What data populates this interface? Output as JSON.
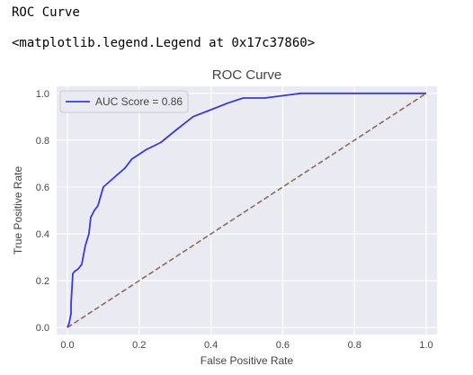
{
  "cell": {
    "print_output": "ROC Curve",
    "repr_output": "<matplotlib.legend.Legend at 0x17c37860>"
  },
  "colors": {
    "plot_background": "#eaeaf2",
    "grid": "#ffffff",
    "roc_line": "#3a3ad8",
    "diagonal_line": "#8c6a5c",
    "legend_border": "#cccccc",
    "text": "#444444"
  },
  "chart_data": {
    "type": "line",
    "title": "ROC Curve",
    "xlabel": "False Positive Rate",
    "ylabel": "True Positive Rate",
    "xlim": [
      -0.03,
      1.03
    ],
    "ylim": [
      -0.03,
      1.03
    ],
    "xticks": [
      0.0,
      0.2,
      0.4,
      0.6,
      0.8,
      1.0
    ],
    "yticks": [
      0.0,
      0.2,
      0.4,
      0.6,
      0.8,
      1.0
    ],
    "xtick_labels": [
      "0.0",
      "0.2",
      "0.4",
      "0.6",
      "0.8",
      "1.0"
    ],
    "ytick_labels": [
      "0.0",
      "0.2",
      "0.4",
      "0.6",
      "0.8",
      "1.0"
    ],
    "grid": true,
    "legend_position": "top-left",
    "series": [
      {
        "name": "AUC Score = 0.86",
        "style": "solid",
        "color": "#3a3ad8",
        "x": [
          0.0,
          0.005,
          0.01,
          0.01,
          0.015,
          0.02,
          0.03,
          0.04,
          0.05,
          0.06,
          0.065,
          0.075,
          0.085,
          0.1,
          0.13,
          0.16,
          0.18,
          0.22,
          0.26,
          0.3,
          0.35,
          0.4,
          0.45,
          0.49,
          0.55,
          0.6,
          0.65,
          0.7,
          0.8,
          0.9,
          1.0
        ],
        "y": [
          0.0,
          0.02,
          0.06,
          0.1,
          0.23,
          0.24,
          0.25,
          0.27,
          0.35,
          0.4,
          0.47,
          0.5,
          0.52,
          0.6,
          0.64,
          0.68,
          0.72,
          0.76,
          0.79,
          0.84,
          0.9,
          0.93,
          0.96,
          0.98,
          0.98,
          0.99,
          1.0,
          1.0,
          1.0,
          1.0,
          1.0
        ]
      },
      {
        "style": "dashed",
        "color": "#8c6a5c",
        "x": [
          0.0,
          1.0
        ],
        "y": [
          0.0,
          1.0
        ]
      }
    ]
  }
}
